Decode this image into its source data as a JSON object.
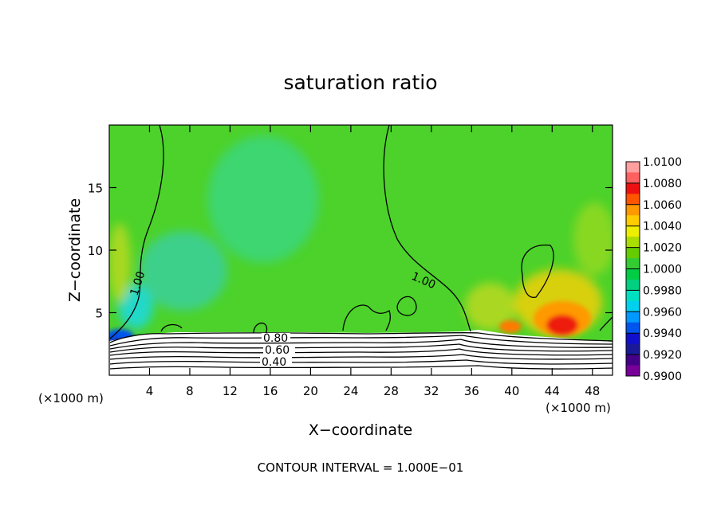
{
  "chart_data": {
    "type": "heatmap",
    "title": "saturation ratio",
    "xlabel": "X−coordinate",
    "ylabel": "Z−coordinate",
    "x_unit_left": "(×1000 m)",
    "x_unit_right": "(×1000 m)",
    "xlim": [
      0,
      50
    ],
    "ylim": [
      0,
      20
    ],
    "x_ticks": [
      4,
      8,
      12,
      16,
      20,
      24,
      28,
      32,
      36,
      40,
      44,
      48
    ],
    "y_ticks": [
      5,
      10,
      15
    ],
    "colorbar": {
      "labels": [
        "1.0100",
        "1.0080",
        "1.0060",
        "1.0040",
        "1.0020",
        "1.0000",
        "0.9980",
        "0.9960",
        "0.9940",
        "0.9920",
        "0.9900"
      ],
      "colors": [
        "#ffa0a0",
        "#ff6060",
        "#ee1010",
        "#ff5500",
        "#ff9900",
        "#ffcc00",
        "#eeee00",
        "#aadd00",
        "#66cc00",
        "#33cc33",
        "#00cc44",
        "#00d080",
        "#00e0c0",
        "#00d0f0",
        "#0099ff",
        "#0055ee",
        "#1010cc",
        "#1a1a99",
        "#440088",
        "#770099"
      ]
    },
    "contour_labels": [
      {
        "text": "1.00",
        "x": 2.6,
        "z": 6.8
      },
      {
        "text": "1.00",
        "x": 31.2,
        "z": 7.4
      },
      {
        "text": "0.80",
        "x": 17.0,
        "z": 3.0
      },
      {
        "text": "0.60",
        "x": 17.6,
        "z": 2.0
      },
      {
        "text": "0.40",
        "x": 17.0,
        "z": 1.2
      }
    ],
    "contour_interval": "CONTOUR INTERVAL = 1.000E−01"
  }
}
